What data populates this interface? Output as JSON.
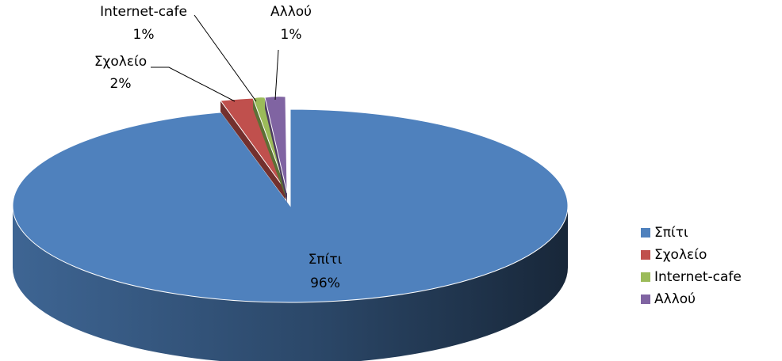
{
  "chart_data": {
    "type": "pie",
    "style": "3d-exploded",
    "categories": [
      "Σπίτι",
      "Σχολείο",
      "Internet-cafe",
      "Αλλού"
    ],
    "values": [
      96,
      2,
      1,
      1
    ],
    "value_labels": [
      "96%",
      "2%",
      "1%",
      "1%"
    ],
    "colors": [
      "#4F81BD",
      "#C0504D",
      "#9BBB59",
      "#8064A2"
    ],
    "legend_position": "right"
  }
}
